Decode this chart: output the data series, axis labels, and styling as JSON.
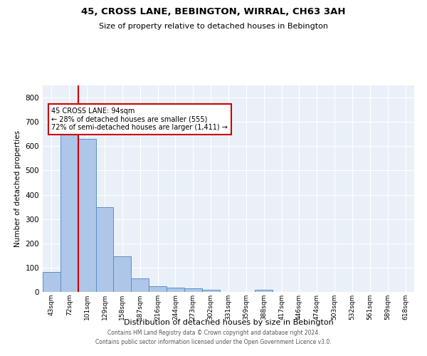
{
  "title": "45, CROSS LANE, BEBINGTON, WIRRAL, CH63 3AH",
  "subtitle": "Size of property relative to detached houses in Bebington",
  "xlabel": "Distribution of detached houses by size in Bebington",
  "ylabel": "Number of detached properties",
  "categories": [
    "43sqm",
    "72sqm",
    "101sqm",
    "129sqm",
    "158sqm",
    "187sqm",
    "216sqm",
    "244sqm",
    "273sqm",
    "302sqm",
    "331sqm",
    "359sqm",
    "388sqm",
    "417sqm",
    "446sqm",
    "474sqm",
    "503sqm",
    "532sqm",
    "561sqm",
    "589sqm",
    "618sqm"
  ],
  "values": [
    83,
    660,
    630,
    348,
    148,
    57,
    22,
    19,
    15,
    10,
    0,
    0,
    8,
    0,
    0,
    0,
    0,
    0,
    0,
    0,
    0
  ],
  "bar_color": "#aec6e8",
  "bar_edge_color": "#5a8fc4",
  "property_line_x": 1.5,
  "annotation_text_line1": "45 CROSS LANE: 94sqm",
  "annotation_text_line2": "← 28% of detached houses are smaller (555)",
  "annotation_text_line3": "72% of semi-detached houses are larger (1,411) →",
  "annotation_box_color": "#ffffff",
  "annotation_border_color": "#cc0000",
  "red_line_color": "#cc0000",
  "ylim": [
    0,
    850
  ],
  "yticks": [
    0,
    100,
    200,
    300,
    400,
    500,
    600,
    700,
    800
  ],
  "background_color": "#eaf0f8",
  "grid_color": "#ffffff",
  "footer_line1": "Contains HM Land Registry data © Crown copyright and database right 2024.",
  "footer_line2": "Contains public sector information licensed under the Open Government Licence v3.0."
}
